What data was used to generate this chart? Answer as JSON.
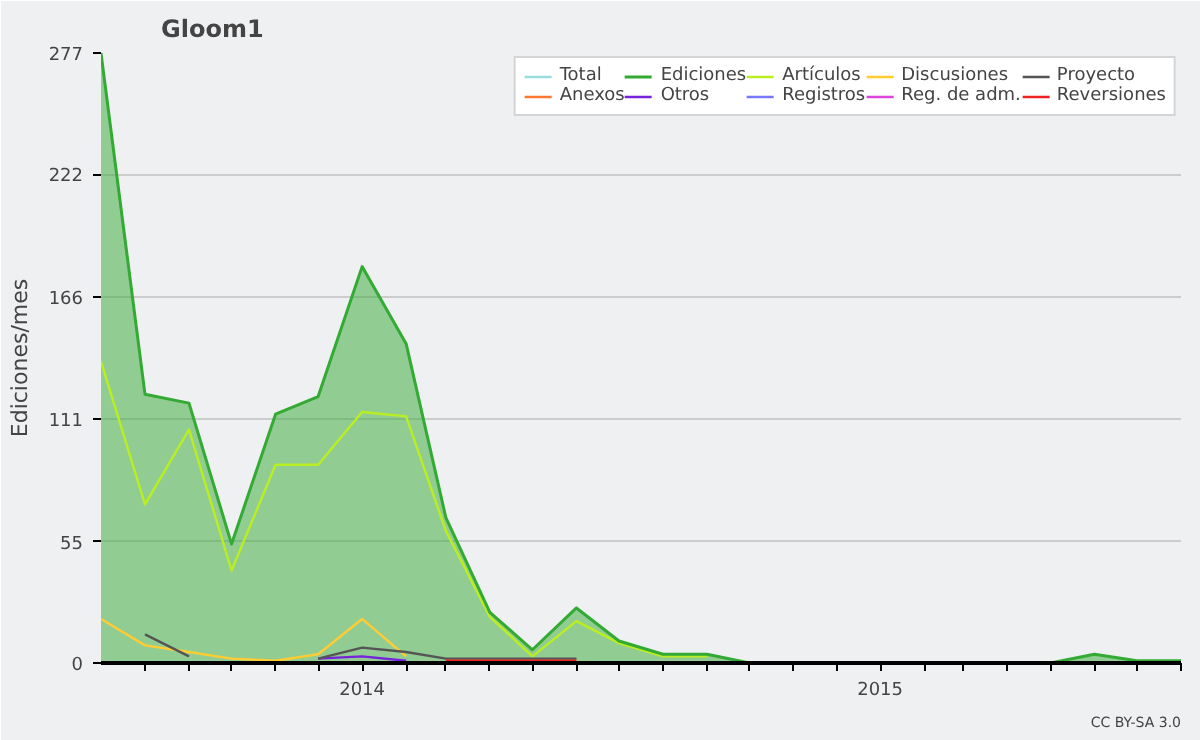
{
  "chart_data": {
    "type": "line",
    "title": "Gloom1",
    "ylabel": "Ediciones/mes",
    "x": [
      "2013-07",
      "2013-08",
      "2013-09",
      "2013-10",
      "2013-11",
      "2013-12",
      "2014-01",
      "2014-02",
      "2014-03",
      "2014-04",
      "2014-05",
      "2014-06",
      "2014-07",
      "2014-08",
      "2014-09",
      "2014-10",
      "2014-11",
      "2014-12",
      "2015-01",
      "2015-02",
      "2015-03",
      "2015-04",
      "2015-05",
      "2015-06",
      "2015-07",
      "2015-08"
    ],
    "series": [
      {
        "name": "Total",
        "color": "#99dddd",
        "values": [
          null,
          null,
          null,
          null,
          null,
          null,
          null,
          null,
          null,
          null,
          null,
          null,
          null,
          null,
          null,
          null,
          null,
          null,
          null,
          null,
          null,
          null,
          null,
          null,
          null,
          null
        ]
      },
      {
        "name": "Anexos",
        "color": "#ff7733",
        "values": [
          null,
          null,
          null,
          null,
          null,
          null,
          null,
          null,
          null,
          null,
          null,
          null,
          null,
          null,
          null,
          null,
          null,
          null,
          null,
          null,
          null,
          null,
          null,
          null,
          null,
          null
        ]
      },
      {
        "name": "Ediciones",
        "type": "area",
        "color": "#33aa33",
        "values": [
          277,
          122,
          118,
          54,
          113,
          121,
          180,
          145,
          66,
          23,
          6,
          25,
          10,
          4,
          4,
          0,
          0,
          0,
          0,
          0,
          0,
          0,
          0,
          4,
          1,
          1
        ]
      },
      {
        "name": "Otros",
        "color": "#7722dd",
        "values": [
          null,
          null,
          null,
          null,
          null,
          2,
          3,
          1,
          null,
          null,
          null,
          null,
          null,
          null,
          null,
          null,
          null,
          null,
          null,
          null,
          null,
          null,
          null,
          null,
          null,
          null
        ]
      },
      {
        "name": "Artículos",
        "color": "#bbee22",
        "values": [
          137,
          72,
          106,
          42,
          90,
          90,
          114,
          112,
          60,
          21,
          3,
          19,
          9,
          3,
          3,
          null,
          null,
          null,
          null,
          null,
          null,
          null,
          null,
          null,
          null,
          null
        ]
      },
      {
        "name": "Registros",
        "color": "#7777ff",
        "values": [
          null,
          null,
          null,
          null,
          null,
          null,
          null,
          null,
          null,
          null,
          null,
          null,
          null,
          null,
          null,
          null,
          null,
          null,
          null,
          null,
          null,
          null,
          null,
          null,
          null,
          null
        ]
      },
      {
        "name": "Discusiones",
        "color": "#ffcc33",
        "values": [
          20,
          8,
          5,
          2,
          1,
          4,
          20,
          3,
          null,
          null,
          null,
          null,
          null,
          null,
          null,
          null,
          null,
          null,
          null,
          null,
          null,
          null,
          null,
          null,
          null,
          null
        ]
      },
      {
        "name": "Reg. de adm.",
        "color": "#dd44dd",
        "values": [
          null,
          null,
          null,
          null,
          null,
          null,
          null,
          null,
          null,
          null,
          null,
          null,
          null,
          null,
          null,
          null,
          null,
          null,
          null,
          null,
          null,
          null,
          null,
          null,
          null,
          null
        ]
      },
      {
        "name": "Proyecto",
        "color": "#555555",
        "values": [
          null,
          13,
          3,
          null,
          null,
          2,
          7,
          5,
          2,
          2,
          2,
          2,
          null,
          null,
          null,
          null,
          null,
          null,
          null,
          null,
          null,
          null,
          null,
          null,
          null,
          null
        ]
      },
      {
        "name": "Reversiones",
        "color": "#ee2222",
        "values": [
          null,
          null,
          null,
          null,
          null,
          null,
          null,
          null,
          1,
          1,
          1,
          1,
          null,
          null,
          null,
          null,
          null,
          null,
          null,
          null,
          null,
          null,
          null,
          null,
          null,
          null
        ]
      }
    ],
    "xlim": [
      "2013-07",
      "2015-08"
    ],
    "xticks": [
      {
        "value": "2013-08",
        "label": null
      },
      {
        "value": "2013-09",
        "label": null
      },
      {
        "value": "2013-10",
        "label": null
      },
      {
        "value": "2013-11",
        "label": null
      },
      {
        "value": "2013-12",
        "label": null
      },
      {
        "value": "2014-01",
        "label": "2014"
      },
      {
        "value": "2014-02",
        "label": null
      },
      {
        "value": "2014-03",
        "label": null
      },
      {
        "value": "2014-04",
        "label": null
      },
      {
        "value": "2014-05",
        "label": null
      },
      {
        "value": "2014-06",
        "label": null
      },
      {
        "value": "2014-07",
        "label": null
      },
      {
        "value": "2014-08",
        "label": null
      },
      {
        "value": "2014-09",
        "label": null
      },
      {
        "value": "2014-10",
        "label": null
      },
      {
        "value": "2014-11",
        "label": null
      },
      {
        "value": "2014-12",
        "label": null
      },
      {
        "value": "2015-01",
        "label": "2015"
      },
      {
        "value": "2015-02",
        "label": null
      },
      {
        "value": "2015-03",
        "label": null
      },
      {
        "value": "2015-04",
        "label": null
      },
      {
        "value": "2015-05",
        "label": null
      },
      {
        "value": "2015-06",
        "label": null
      },
      {
        "value": "2015-07",
        "label": null
      },
      {
        "value": "2015-08",
        "label": null
      }
    ],
    "ylim": [
      0,
      277
    ],
    "yticks": [
      0,
      55,
      111,
      166,
      222,
      277
    ],
    "grid": "y",
    "legend": "top right",
    "annotations": [
      "CC BY-SA 3.0"
    ]
  }
}
